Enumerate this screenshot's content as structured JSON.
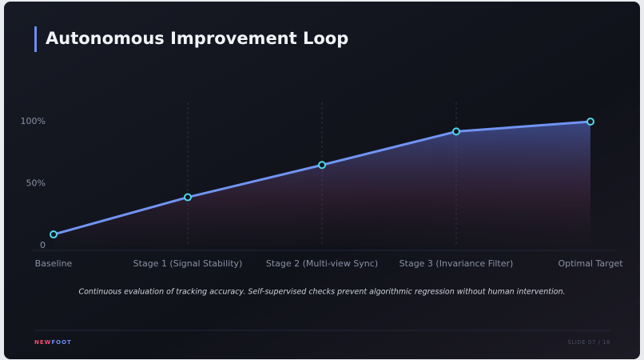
{
  "title": "Autonomous Improvement Loop",
  "chart_data": {
    "type": "line",
    "categories": [
      "Baseline",
      "Stage 1 (Signal Stability)",
      "Stage 2 (Multi-view Sync)",
      "Stage 3 (Invariance Filter)",
      "Optimal Target"
    ],
    "values": [
      9,
      39,
      65,
      92,
      100
    ],
    "color": "#7094f3",
    "marker_color": "#4fd6ea",
    "ylim": [
      0,
      100
    ],
    "yticks": [
      0,
      {
        "value": 50,
        "label": "50%"
      },
      {
        "value": 100,
        "label": "100%"
      }
    ]
  },
  "caption": "Continuous evaluation of tracking accuracy. Self-supervised checks prevent algorithmic regression without human intervention.",
  "footer": {
    "brand_first": "NEW",
    "brand_second": "FOOT",
    "slide": "SLIDE 07 / 16"
  }
}
